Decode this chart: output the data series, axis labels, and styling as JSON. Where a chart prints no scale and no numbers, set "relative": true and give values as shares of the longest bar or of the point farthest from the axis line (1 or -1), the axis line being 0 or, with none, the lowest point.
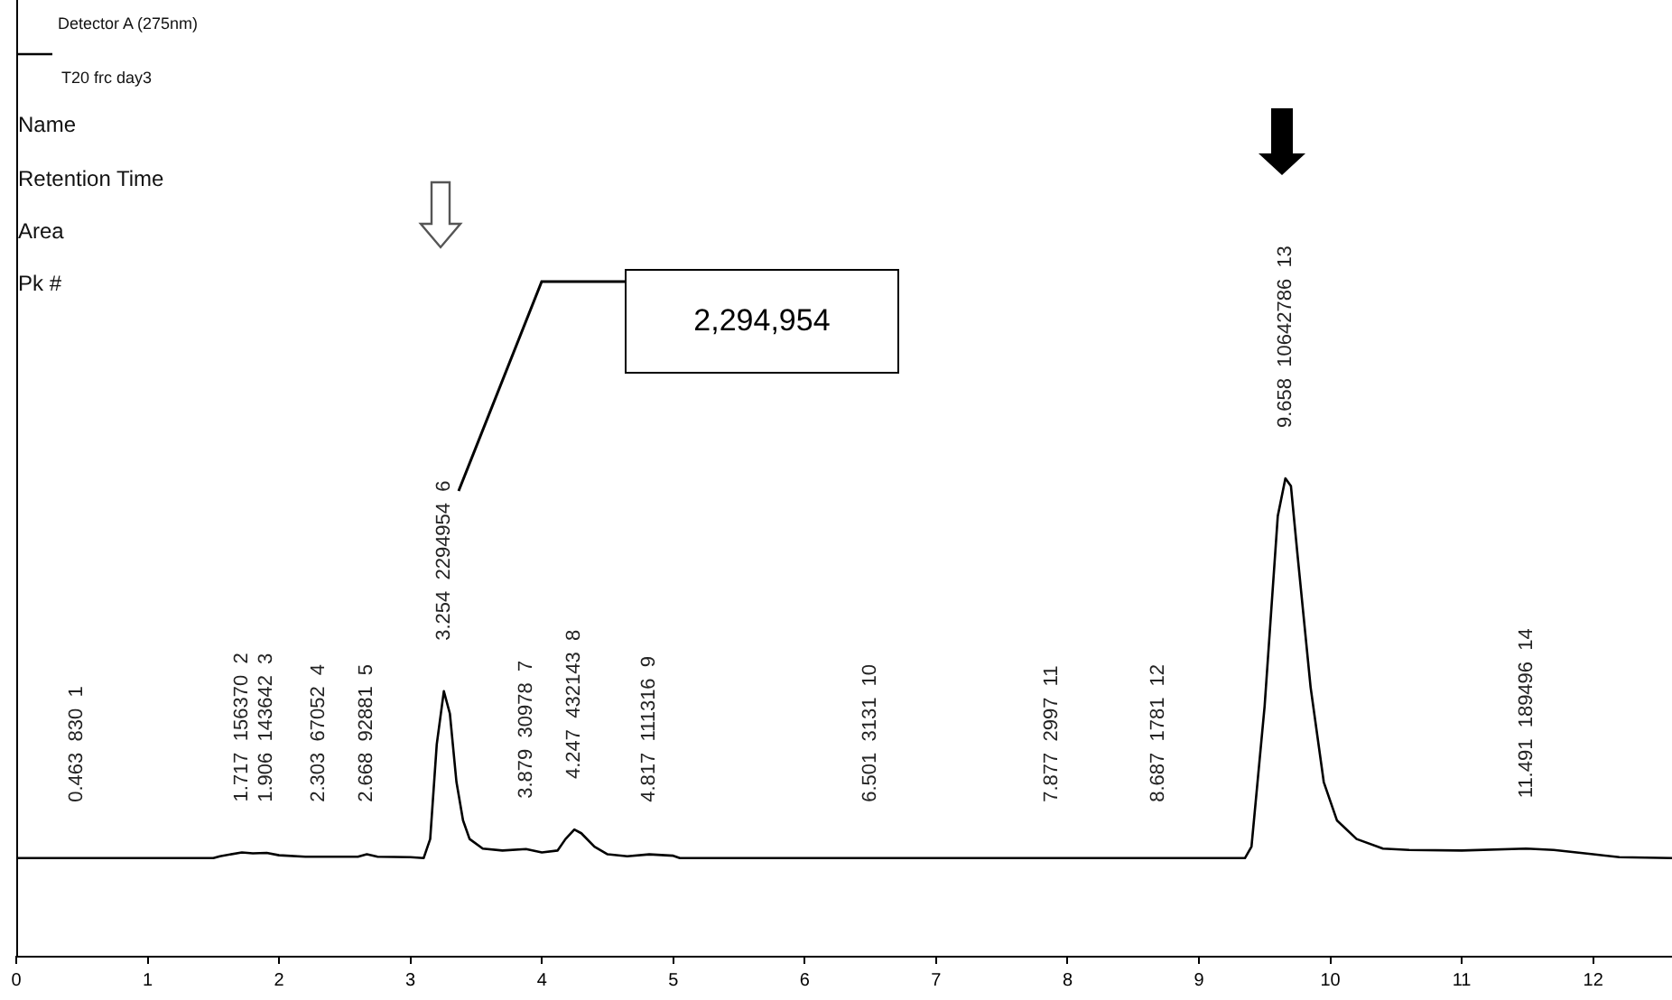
{
  "chart_data": {
    "type": "line",
    "relative": true,
    "legend": "top left",
    "tick_labels": "x",
    "grid": false,
    "marker": "none",
    "line_style": "solid",
    "xlim": [
      0,
      12.6
    ],
    "xticks": [
      0,
      1,
      2,
      3,
      4,
      5,
      6,
      7,
      8,
      9,
      10,
      11,
      12
    ],
    "series": [
      {
        "name": "Detector A (275nm)",
        "color": "#000000",
        "x": [
          0,
          0.463,
          1.5,
          1.55,
          1.717,
          1.8,
          1.906,
          2.0,
          2.2,
          2.303,
          2.6,
          2.668,
          2.75,
          3.0,
          3.1,
          3.15,
          3.2,
          3.254,
          3.3,
          3.35,
          3.4,
          3.45,
          3.55,
          3.7,
          3.879,
          4.0,
          4.12,
          4.18,
          4.247,
          4.3,
          4.4,
          4.5,
          4.65,
          4.817,
          5.0,
          5.05,
          6.501,
          7.877,
          8.687,
          9.35,
          9.4,
          9.5,
          9.6,
          9.658,
          9.7,
          9.75,
          9.85,
          9.95,
          10.05,
          10.2,
          10.4,
          10.6,
          11.0,
          11.491,
          11.7,
          12.0,
          12.2,
          12.6
        ],
        "values": [
          0.206,
          0.206,
          0.206,
          0.21,
          0.218,
          0.216,
          0.217,
          0.212,
          0.209,
          0.209,
          0.209,
          0.214,
          0.209,
          0.208,
          0.206,
          0.246,
          0.444,
          0.555,
          0.508,
          0.365,
          0.285,
          0.246,
          0.226,
          0.222,
          0.225,
          0.218,
          0.222,
          0.246,
          0.266,
          0.258,
          0.23,
          0.214,
          0.21,
          0.214,
          0.211,
          0.206,
          0.206,
          0.206,
          0.206,
          0.206,
          0.23,
          0.524,
          0.921,
          1,
          0.984,
          0.841,
          0.563,
          0.365,
          0.285,
          0.246,
          0.226,
          0.223,
          0.222,
          0.226,
          0.223,
          0.214,
          0.208,
          0.206
        ]
      }
    ],
    "annotations": [
      "T20 frc day3",
      "Name",
      "Retention Time",
      "Area",
      "Pk #",
      "2,294,954",
      {
        "text": "0.463  830  1",
        "x": 0.463,
        "y": 0.206
      },
      {
        "text": "1.717  156370  2",
        "x": 1.717,
        "y": 0.218
      },
      {
        "text": "1.906  143642  3",
        "x": 1.906,
        "y": 0.217
      },
      {
        "text": "2.303  67052  4",
        "x": 2.303,
        "y": 0.209
      },
      {
        "text": "2.668  92881  5",
        "x": 2.668,
        "y": 0.214
      },
      {
        "text": "3.254  2294954  6",
        "x": 3.254,
        "y": 0.555
      },
      {
        "text": "3.879  30978  7",
        "x": 3.879,
        "y": 0.225
      },
      {
        "text": "4.247  432143  8",
        "x": 4.247,
        "y": 0.266
      },
      {
        "text": "4.817  111316  9",
        "x": 4.817,
        "y": 0.214
      },
      {
        "text": "6.501  3131  10",
        "x": 6.501,
        "y": 0.206
      },
      {
        "text": "7.877  2997  11",
        "x": 7.877,
        "y": 0.206
      },
      {
        "text": "8.687  1781  12",
        "x": 8.687,
        "y": 0.206
      },
      {
        "text": "9.658  10642786  13",
        "x": 9.658,
        "y": 1
      },
      {
        "text": "11.491  189496  14",
        "x": 11.491,
        "y": 0.226
      }
    ]
  }
}
